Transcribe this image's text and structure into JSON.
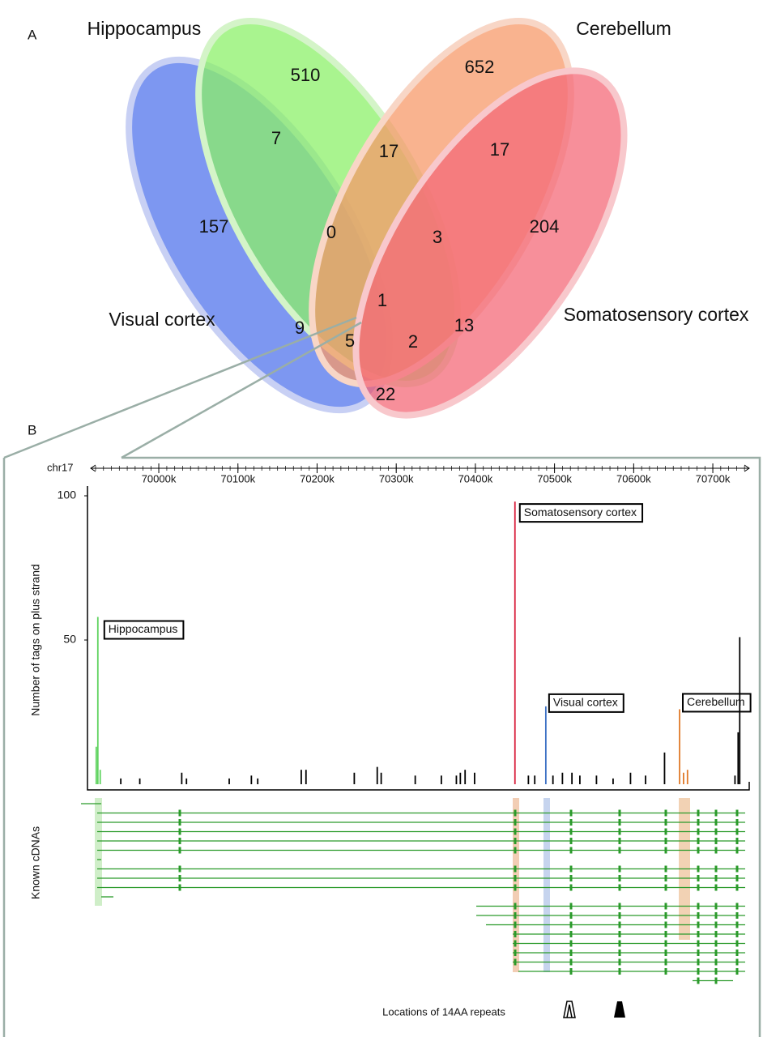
{
  "panel_a": {
    "label": "A",
    "sets": [
      "Hippocampus",
      "Cerebellum",
      "Visual cortex",
      "Somatosensory cortex"
    ],
    "counts": [
      510,
      652,
      7,
      17,
      17,
      157,
      0,
      3,
      204,
      1,
      9,
      13,
      5,
      2,
      22
    ]
  },
  "chart_data": {
    "type": "bar",
    "panel_label": "B",
    "x_label": "chr17",
    "y_label": "Number of tags on plus strand",
    "track_label": "Known cDNAs",
    "repeats_label": "Locations of 14AA repeats",
    "xlim": [
      69914,
      70746
    ],
    "xticks": [
      {
        "value": 70000,
        "label": "70000k"
      },
      {
        "value": 70100,
        "label": "70100k"
      },
      {
        "value": 70200,
        "label": "70200k"
      },
      {
        "value": 70300,
        "label": "70300k"
      },
      {
        "value": 70400,
        "label": "70400k"
      },
      {
        "value": 70500,
        "label": "70500k"
      },
      {
        "value": 70600,
        "label": "70600k"
      },
      {
        "value": 70700,
        "label": "70700k"
      }
    ],
    "ylim": [
      0,
      100
    ],
    "yticks": [
      100,
      50
    ],
    "series": [
      {
        "name": "Hippocampus",
        "color": "#5fd35f",
        "x": [
          69921,
          69923,
          69926
        ],
        "values": [
          13,
          58,
          5
        ]
      },
      {
        "name": "Somatosensory cortex",
        "color": "#d81f3c",
        "x": [
          70450
        ],
        "values": [
          98
        ]
      },
      {
        "name": "Visual cortex",
        "color": "#3a6fc4",
        "x": [
          70489
        ],
        "values": [
          27
        ]
      },
      {
        "name": "Cerebellum",
        "color": "#e07a2a",
        "x": [
          70658,
          70663,
          70668
        ],
        "values": [
          26,
          4,
          5
        ]
      },
      {
        "color": "#000000",
        "x": [
          69952,
          69976,
          70029,
          70035,
          70089,
          70117,
          70125,
          70180,
          70186,
          70247,
          70276,
          70281,
          70324,
          70357,
          70376,
          70381,
          70387,
          70399,
          70467,
          70475,
          70498,
          70510,
          70522,
          70532,
          70553,
          70574,
          70596,
          70615,
          70639,
          70728,
          70732,
          70734
        ],
        "values": [
          2,
          2,
          4,
          2,
          2,
          3,
          2,
          5,
          5,
          4,
          6,
          4,
          3,
          3,
          3,
          4,
          5,
          4,
          3,
          3,
          3,
          4,
          4,
          3,
          3,
          2,
          4,
          3,
          11,
          3,
          18,
          51
        ]
      }
    ]
  }
}
